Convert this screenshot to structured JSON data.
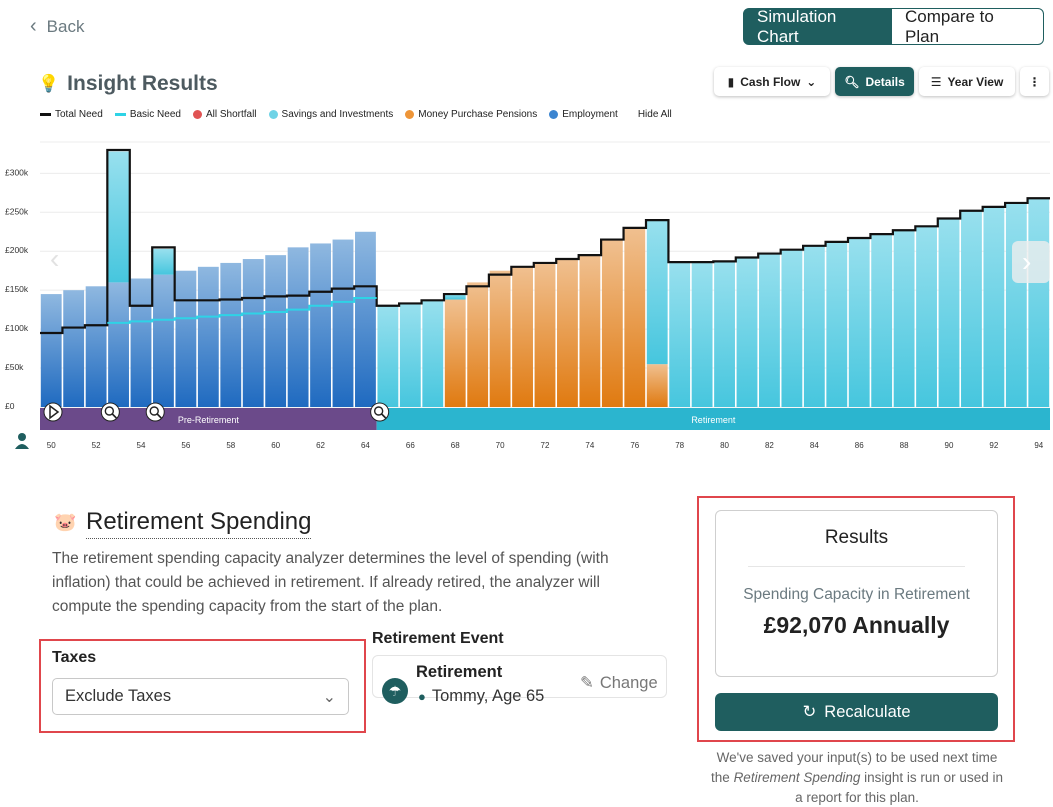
{
  "nav": {
    "back_label": "Back"
  },
  "view_toggle": {
    "active": "Simulation Chart",
    "inactive": "Compare to Plan"
  },
  "insight": {
    "title": "Insight Results"
  },
  "toolbar": {
    "cash_flow": "Cash Flow",
    "details": "Details",
    "year_view": "Year View",
    "more": "⋮"
  },
  "legend": [
    {
      "label": "Total Need",
      "color": "#111111",
      "kind": "line"
    },
    {
      "label": "Basic Need",
      "color": "#2ed3e6",
      "kind": "line"
    },
    {
      "label": "All Shortfall",
      "color": "#e05353",
      "kind": "dot"
    },
    {
      "label": "Savings and Investments",
      "color": "#6fd3e6",
      "kind": "dot"
    },
    {
      "label": "Money Purchase Pensions",
      "color": "#ee9538",
      "kind": "dot"
    },
    {
      "label": "Employment",
      "color": "#3c85d0",
      "kind": "dot"
    },
    {
      "label": "Hide All",
      "color": "",
      "kind": "none"
    }
  ],
  "chart_data": {
    "type": "bar",
    "ylabel_ticks": [
      "£0",
      "£50k",
      "£100k",
      "£150k",
      "£200k",
      "£250k",
      "£300k"
    ],
    "ylim": [
      0,
      330000
    ],
    "x": [
      50,
      51,
      52,
      53,
      54,
      55,
      56,
      57,
      58,
      59,
      60,
      61,
      62,
      63,
      64,
      65,
      66,
      67,
      68,
      69,
      70,
      71,
      72,
      73,
      74,
      75,
      76,
      77,
      78,
      79,
      80,
      81,
      82,
      83,
      84,
      85,
      86,
      87,
      88,
      89,
      90,
      91,
      92,
      93,
      94
    ],
    "x_tick_labels": [
      "50",
      "52",
      "54",
      "56",
      "58",
      "60",
      "62",
      "64",
      "66",
      "68",
      "70",
      "72",
      "74",
      "76",
      "78",
      "80",
      "82",
      "84",
      "86",
      "88",
      "90",
      "92",
      "94"
    ],
    "series": [
      {
        "name": "Employment",
        "color": "#3c85d0",
        "values": [
          145000,
          150000,
          155000,
          160000,
          165000,
          170000,
          175000,
          180000,
          185000,
          190000,
          195000,
          205000,
          210000,
          215000,
          225000,
          0,
          0,
          0,
          0,
          0,
          0,
          0,
          0,
          0,
          0,
          0,
          0,
          0,
          0,
          0,
          0,
          0,
          0,
          0,
          0,
          0,
          0,
          0,
          0,
          0,
          0,
          0,
          0,
          0,
          0
        ]
      },
      {
        "name": "Money Purchase Pensions",
        "color": "#ee9538",
        "values": [
          0,
          0,
          0,
          0,
          0,
          0,
          0,
          0,
          0,
          0,
          0,
          0,
          0,
          0,
          0,
          0,
          0,
          0,
          138000,
          160000,
          175000,
          180000,
          185000,
          190000,
          195000,
          215000,
          230000,
          55000,
          0,
          0,
          0,
          0,
          0,
          0,
          0,
          0,
          0,
          0,
          0,
          0,
          0,
          0,
          0,
          0,
          0
        ]
      },
      {
        "name": "Savings and Investments",
        "color": "#6fd3e6",
        "values": [
          0,
          0,
          0,
          168000,
          0,
          33000,
          0,
          0,
          0,
          0,
          0,
          0,
          0,
          0,
          0,
          130000,
          133000,
          137000,
          8000,
          0,
          0,
          0,
          0,
          0,
          0,
          0,
          0,
          185000,
          185000,
          185000,
          187000,
          192000,
          197000,
          202000,
          207000,
          212000,
          217000,
          222000,
          227000,
          232000,
          242000,
          252000,
          257000,
          262000,
          267000
        ]
      }
    ],
    "total_need": [
      95000,
      102000,
      105000,
      330000,
      130000,
      205000,
      137000,
      137000,
      138000,
      140000,
      142000,
      143000,
      148000,
      152000,
      155000,
      130000,
      133000,
      137000,
      145000,
      155000,
      170000,
      180000,
      185000,
      190000,
      195000,
      215000,
      230000,
      240000,
      186000,
      186000,
      187000,
      192000,
      197000,
      202000,
      207000,
      212000,
      217000,
      222000,
      227000,
      232000,
      242000,
      252000,
      257000,
      262000,
      268000
    ],
    "basic_need": [
      null,
      null,
      null,
      108000,
      110000,
      112000,
      114000,
      116000,
      118000,
      120000,
      122000,
      125000,
      130000,
      135000,
      140000,
      null,
      null,
      null,
      null,
      null,
      null,
      null,
      null,
      null,
      null,
      null,
      null,
      null,
      null,
      null,
      null,
      null,
      null,
      null,
      null,
      null,
      null,
      null,
      null,
      null,
      null,
      null,
      null,
      null,
      null
    ],
    "phases": [
      {
        "label": "Pre-Retirement",
        "from": 50,
        "to": 65,
        "color": "#6b4a8a"
      },
      {
        "label": "Retirement",
        "from": 65,
        "to": 95,
        "color": "#2bb5cf"
      }
    ],
    "events": [
      50,
      53,
      55,
      65
    ]
  },
  "spending": {
    "title": "Retirement Spending",
    "description": "The retirement spending capacity analyzer determines the level of spending (with inflation) that could be achieved in retirement. If already retired, the analyzer will compute the spending capacity from the start of the plan.",
    "taxes_label": "Taxes",
    "taxes_value": "Exclude Taxes",
    "event_label": "Retirement Event",
    "event_name": "Retirement",
    "event_person": "Tommy, Age 65",
    "change_label": "Change"
  },
  "results": {
    "title": "Results",
    "subtitle": "Spending Capacity in Retirement",
    "value": "£92,070 Annually",
    "recalc_label": "Recalculate",
    "saved_note_1": "We've saved your input(s) to be used next time the ",
    "saved_note_em": "Retirement Spending",
    "saved_note_2": " insight is run or used in a report for this plan."
  }
}
